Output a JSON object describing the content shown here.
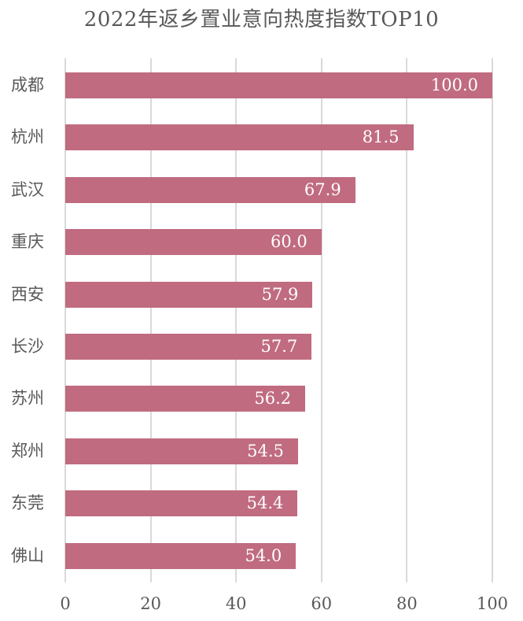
{
  "chart_data": {
    "type": "bar",
    "orientation": "horizontal",
    "title": "2022年返乡置业意向热度指数TOP10",
    "categories": [
      "成都",
      "杭州",
      "武汉",
      "重庆",
      "西安",
      "长沙",
      "苏州",
      "郑州",
      "东莞",
      "佛山"
    ],
    "values": [
      100.0,
      81.5,
      67.9,
      60.0,
      57.9,
      57.7,
      56.2,
      54.5,
      54.4,
      54.0
    ],
    "value_labels": [
      "100.0",
      "81.5",
      "67.9",
      "60.0",
      "57.9",
      "57.7",
      "56.2",
      "54.5",
      "54.4",
      "54.0"
    ],
    "xlabel": "",
    "ylabel": "",
    "xlim": [
      0,
      100
    ],
    "x_ticks": [
      "0",
      "20",
      "40",
      "60",
      "80",
      "100"
    ],
    "grid": "vertical",
    "legend": "none",
    "bar_color": "#c06b80"
  }
}
